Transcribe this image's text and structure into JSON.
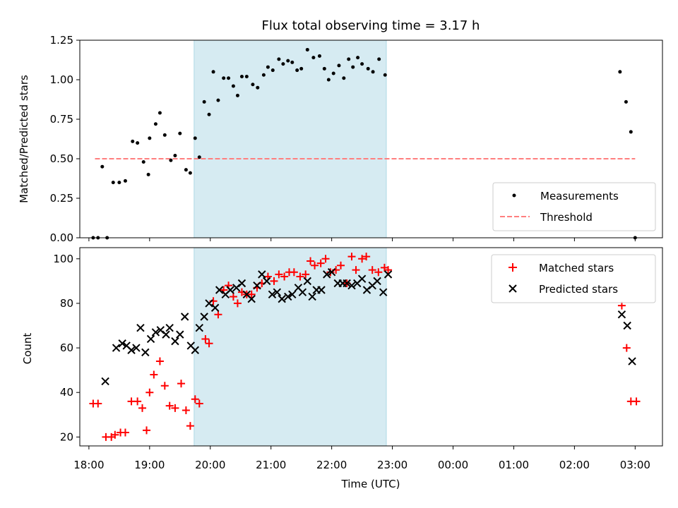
{
  "chart_data": {
    "type": "scatter",
    "title": "Flux total observing time = 3.17 h",
    "xlabel": "Time (UTC)",
    "x_ticks": [
      "18:00",
      "19:00",
      "20:00",
      "21:00",
      "22:00",
      "23:00",
      "00:00",
      "01:00",
      "02:00",
      "03:00"
    ],
    "xlim_hours": [
      17.85,
      27.45
    ],
    "x_unit": "hours after 00:00 UTC on the first day (18:00 = 18, 00:00 next day = 24)",
    "highlight_span": {
      "start": "19:44",
      "end": "22:54",
      "color": "#add8e6"
    },
    "panels": [
      {
        "ylabel": "Matched/Predicted stars",
        "ylim": [
          0,
          1.25
        ],
        "y_ticks": [
          "0.00",
          "0.25",
          "0.50",
          "0.75",
          "1.00",
          "1.25"
        ],
        "legend": {
          "position": "lower right",
          "entries": [
            "Measurements",
            "Threshold"
          ]
        },
        "threshold": {
          "name": "Threshold",
          "value": 0.5,
          "x_range": [
            18.1,
            27.0
          ],
          "color": "#ff7f7f"
        },
        "series": [
          {
            "name": "Measurements",
            "marker": "dot",
            "color": "#000000",
            "points": [
              [
                18.07,
                0.0
              ],
              [
                18.15,
                0.0
              ],
              [
                18.3,
                0.0
              ],
              [
                18.22,
                0.45
              ],
              [
                18.4,
                0.35
              ],
              [
                18.5,
                0.35
              ],
              [
                18.6,
                0.36
              ],
              [
                18.72,
                0.61
              ],
              [
                18.8,
                0.6
              ],
              [
                18.9,
                0.48
              ],
              [
                18.98,
                0.4
              ],
              [
                19.0,
                0.63
              ],
              [
                19.1,
                0.72
              ],
              [
                19.17,
                0.79
              ],
              [
                19.25,
                0.65
              ],
              [
                19.35,
                0.49
              ],
              [
                19.42,
                0.52
              ],
              [
                19.5,
                0.66
              ],
              [
                19.6,
                0.43
              ],
              [
                19.67,
                0.41
              ],
              [
                19.75,
                0.63
              ],
              [
                19.82,
                0.51
              ],
              [
                19.9,
                0.86
              ],
              [
                19.98,
                0.78
              ],
              [
                20.05,
                1.05
              ],
              [
                20.13,
                0.87
              ],
              [
                20.22,
                1.01
              ],
              [
                20.3,
                1.01
              ],
              [
                20.38,
                0.96
              ],
              [
                20.45,
                0.9
              ],
              [
                20.52,
                1.02
              ],
              [
                20.6,
                1.02
              ],
              [
                20.7,
                0.97
              ],
              [
                20.78,
                0.95
              ],
              [
                20.88,
                1.03
              ],
              [
                20.95,
                1.08
              ],
              [
                21.03,
                1.06
              ],
              [
                21.13,
                1.13
              ],
              [
                21.2,
                1.1
              ],
              [
                21.28,
                1.12
              ],
              [
                21.35,
                1.11
              ],
              [
                21.43,
                1.06
              ],
              [
                21.5,
                1.07
              ],
              [
                21.6,
                1.19
              ],
              [
                21.7,
                1.14
              ],
              [
                21.8,
                1.15
              ],
              [
                21.88,
                1.07
              ],
              [
                21.95,
                1.0
              ],
              [
                22.03,
                1.04
              ],
              [
                22.12,
                1.09
              ],
              [
                22.2,
                1.01
              ],
              [
                22.28,
                1.13
              ],
              [
                22.35,
                1.08
              ],
              [
                22.43,
                1.14
              ],
              [
                22.5,
                1.1
              ],
              [
                22.6,
                1.07
              ],
              [
                22.68,
                1.05
              ],
              [
                22.78,
                1.13
              ],
              [
                22.88,
                1.03
              ],
              [
                26.75,
                1.05
              ],
              [
                26.85,
                0.86
              ],
              [
                26.93,
                0.67
              ],
              [
                27.0,
                0.0
              ]
            ]
          }
        ]
      },
      {
        "ylabel": "Count",
        "ylim": [
          16,
          105
        ],
        "y_ticks": [
          "20",
          "40",
          "60",
          "80",
          "100"
        ],
        "legend": {
          "position": "upper right",
          "entries": [
            "Matched stars",
            "Predicted stars"
          ]
        },
        "series": [
          {
            "name": "Matched stars",
            "marker": "plus",
            "color": "#ff0000",
            "points": [
              [
                18.07,
                35
              ],
              [
                18.15,
                35
              ],
              [
                18.28,
                20
              ],
              [
                18.37,
                20
              ],
              [
                18.43,
                21
              ],
              [
                18.52,
                22
              ],
              [
                18.6,
                22
              ],
              [
                18.7,
                36
              ],
              [
                18.8,
                36
              ],
              [
                18.88,
                33
              ],
              [
                18.95,
                23
              ],
              [
                19.0,
                40
              ],
              [
                19.07,
                48
              ],
              [
                19.17,
                54
              ],
              [
                19.25,
                43
              ],
              [
                19.33,
                34
              ],
              [
                19.42,
                33
              ],
              [
                19.52,
                44
              ],
              [
                19.6,
                32
              ],
              [
                19.67,
                25
              ],
              [
                19.75,
                37
              ],
              [
                19.82,
                35
              ],
              [
                19.92,
                64
              ],
              [
                19.98,
                62
              ],
              [
                20.05,
                81
              ],
              [
                20.13,
                75
              ],
              [
                20.22,
                86
              ],
              [
                20.3,
                88
              ],
              [
                20.38,
                83
              ],
              [
                20.45,
                80
              ],
              [
                20.52,
                85
              ],
              [
                20.6,
                84
              ],
              [
                20.68,
                84
              ],
              [
                20.77,
                87
              ],
              [
                20.85,
                89
              ],
              [
                20.95,
                92
              ],
              [
                21.05,
                90
              ],
              [
                21.13,
                93
              ],
              [
                21.22,
                92
              ],
              [
                21.3,
                94
              ],
              [
                21.38,
                94
              ],
              [
                21.48,
                92
              ],
              [
                21.57,
                93
              ],
              [
                21.65,
                99
              ],
              [
                21.72,
                97
              ],
              [
                21.82,
                98
              ],
              [
                21.9,
                100
              ],
              [
                21.98,
                94
              ],
              [
                22.07,
                95
              ],
              [
                22.15,
                97
              ],
              [
                22.25,
                89
              ],
              [
                22.33,
                101
              ],
              [
                22.4,
                95
              ],
              [
                22.5,
                100
              ],
              [
                22.57,
                101
              ],
              [
                22.67,
                95
              ],
              [
                22.77,
                94
              ],
              [
                22.87,
                96
              ],
              [
                22.93,
                95
              ],
              [
                26.78,
                79
              ],
              [
                26.86,
                60
              ],
              [
                26.93,
                36
              ],
              [
                27.02,
                36
              ]
            ]
          },
          {
            "name": "Predicted stars",
            "marker": "x",
            "color": "#000000",
            "points": [
              [
                18.27,
                45
              ],
              [
                18.45,
                60
              ],
              [
                18.55,
                62
              ],
              [
                18.62,
                61
              ],
              [
                18.7,
                59
              ],
              [
                18.78,
                60
              ],
              [
                18.85,
                69
              ],
              [
                18.93,
                58
              ],
              [
                19.02,
                64
              ],
              [
                19.1,
                67
              ],
              [
                19.18,
                68
              ],
              [
                19.27,
                66
              ],
              [
                19.33,
                69
              ],
              [
                19.42,
                63
              ],
              [
                19.5,
                66
              ],
              [
                19.58,
                74
              ],
              [
                19.68,
                61
              ],
              [
                19.75,
                59
              ],
              [
                19.82,
                69
              ],
              [
                19.9,
                74
              ],
              [
                19.98,
                80
              ],
              [
                20.08,
                78
              ],
              [
                20.15,
                86
              ],
              [
                20.25,
                84
              ],
              [
                20.33,
                86
              ],
              [
                20.43,
                87
              ],
              [
                20.52,
                89
              ],
              [
                20.6,
                84
              ],
              [
                20.68,
                82
              ],
              [
                20.77,
                88
              ],
              [
                20.85,
                93
              ],
              [
                20.93,
                90
              ],
              [
                21.02,
                84
              ],
              [
                21.1,
                85
              ],
              [
                21.18,
                82
              ],
              [
                21.28,
                83
              ],
              [
                21.35,
                84
              ],
              [
                21.45,
                87
              ],
              [
                21.52,
                85
              ],
              [
                21.6,
                90
              ],
              [
                21.68,
                83
              ],
              [
                21.75,
                86
              ],
              [
                21.83,
                86
              ],
              [
                21.92,
                93
              ],
              [
                22.0,
                94
              ],
              [
                22.1,
                89
              ],
              [
                22.18,
                89
              ],
              [
                22.25,
                89
              ],
              [
                22.33,
                88
              ],
              [
                22.42,
                89
              ],
              [
                22.5,
                91
              ],
              [
                22.58,
                86
              ],
              [
                22.67,
                88
              ],
              [
                22.75,
                90
              ],
              [
                22.85,
                85
              ],
              [
                22.93,
                93
              ],
              [
                26.78,
                75
              ],
              [
                26.87,
                70
              ],
              [
                26.95,
                54
              ]
            ]
          }
        ]
      }
    ]
  }
}
